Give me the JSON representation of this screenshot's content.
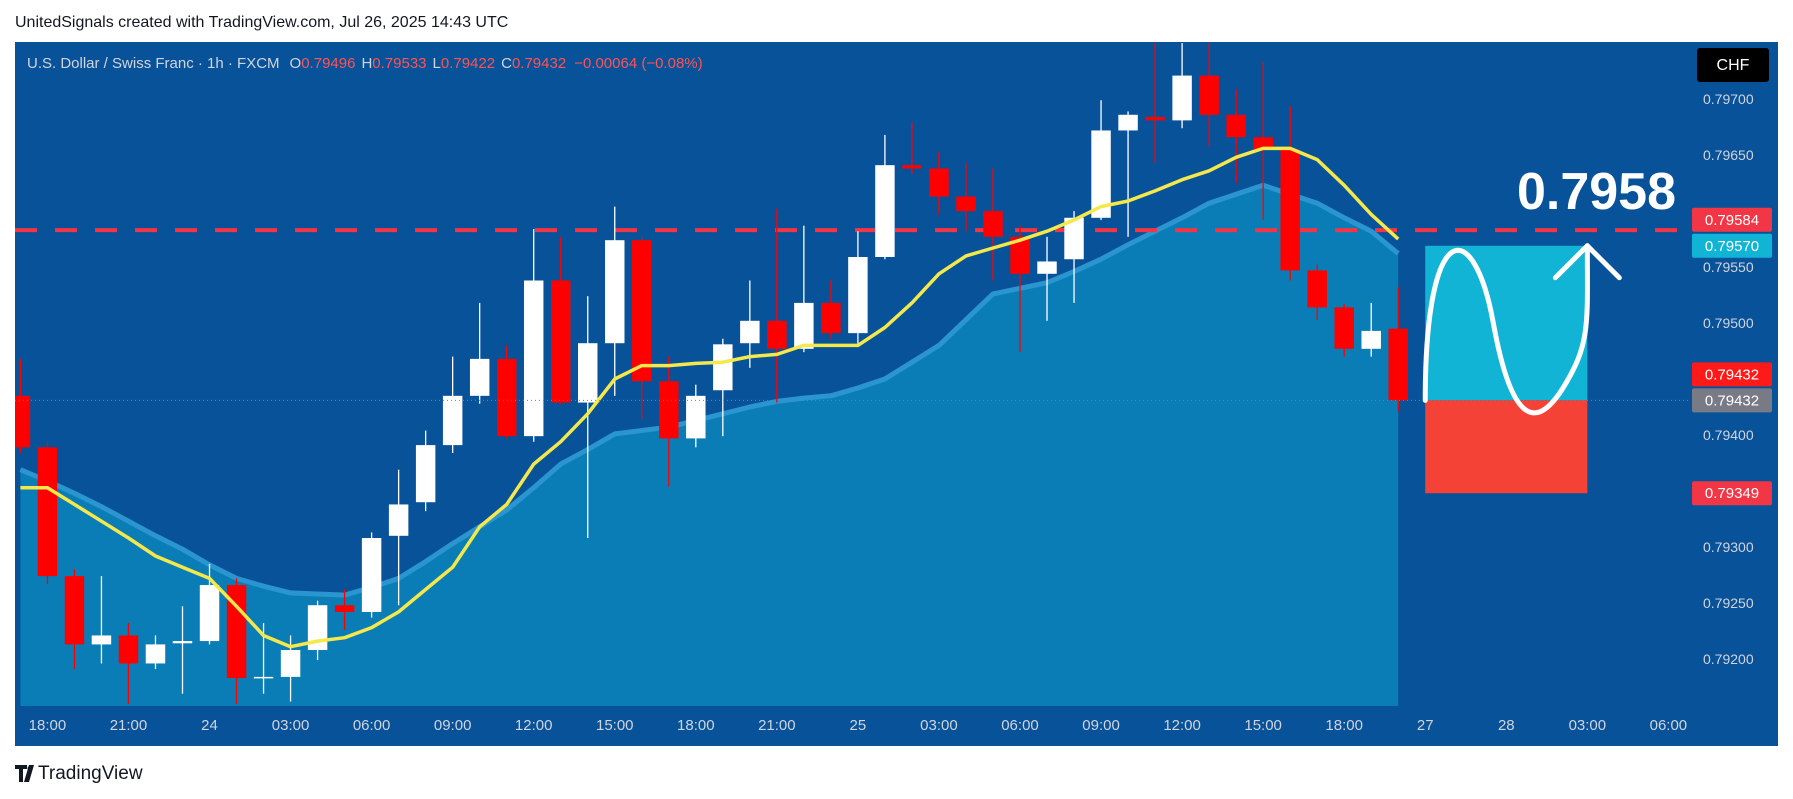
{
  "header": "UnitedSignals created with TradingView.com, Jul 26, 2025 14:43 UTC",
  "currency": "CHF",
  "brand": "TradingView",
  "chart_data": {
    "type": "candlestick",
    "title": "U.S. Dollar / Swiss Franc · 1h · FXCM",
    "ohlc_labels": [
      "O",
      "H",
      "L",
      "C"
    ],
    "change": "−0.00064 (−0.08%)",
    "up_color": "#ffffff",
    "down_color": "#ff0000",
    "open": [
      0.79436,
      0.7939,
      0.79275,
      0.79214,
      0.79222,
      0.79197,
      0.79215,
      0.79217,
      0.79267,
      0.79184,
      0.79185,
      0.79209,
      0.79249,
      0.79243,
      0.79311,
      0.79341,
      0.79392,
      0.79436,
      0.79469,
      0.794,
      0.79539,
      0.7943,
      0.79483,
      0.79575,
      0.79449,
      0.79398,
      0.79441,
      0.79483,
      0.79503,
      0.79478,
      0.79519,
      0.79492,
      0.7956,
      0.79642,
      0.79639,
      0.79614,
      0.79601,
      0.79578,
      0.79545,
      0.79558,
      0.79595,
      0.79673,
      0.79685,
      0.79682,
      0.79722,
      0.79687,
      0.79667,
      0.79656,
      0.79548,
      0.79515,
      0.79478,
      0.79496
    ],
    "high": [
      0.79469,
      0.79395,
      0.79281,
      0.79275,
      0.79233,
      0.79222,
      0.79248,
      0.79286,
      0.79273,
      0.79233,
      0.79222,
      0.79253,
      0.79263,
      0.79314,
      0.7937,
      0.79405,
      0.79471,
      0.79519,
      0.79481,
      0.79585,
      0.79578,
      0.79525,
      0.79605,
      0.79578,
      0.79471,
      0.79446,
      0.79487,
      0.79539,
      0.79603,
      0.79588,
      0.79539,
      0.79583,
      0.79669,
      0.7968,
      0.79654,
      0.79644,
      0.79639,
      0.79588,
      0.79578,
      0.79601,
      0.797,
      0.7969,
      0.79751,
      0.79751,
      0.79751,
      0.7971,
      0.79734,
      0.79695,
      0.79553,
      0.79518,
      0.79519,
      0.79533
    ],
    "low": [
      0.79385,
      0.79268,
      0.79192,
      0.79197,
      0.79161,
      0.79192,
      0.7917,
      0.79214,
      0.79161,
      0.7917,
      0.79163,
      0.792,
      0.79227,
      0.79238,
      0.79249,
      0.79333,
      0.79385,
      0.79429,
      0.79398,
      0.79395,
      0.79429,
      0.79309,
      0.79436,
      0.79415,
      0.79355,
      0.7939,
      0.794,
      0.79461,
      0.7943,
      0.79475,
      0.79487,
      0.79481,
      0.79558,
      0.79634,
      0.79598,
      0.79583,
      0.79539,
      0.79475,
      0.79503,
      0.79519,
      0.79593,
      0.79578,
      0.79644,
      0.79675,
      0.79659,
      0.79626,
      0.79593,
      0.79539,
      0.79504,
      0.79471,
      0.79471,
      0.79422
    ],
    "close": [
      0.7939,
      0.79275,
      0.79214,
      0.79222,
      0.79197,
      0.79214,
      0.79217,
      0.79267,
      0.79184,
      0.79185,
      0.79209,
      0.79249,
      0.79243,
      0.79309,
      0.79339,
      0.79392,
      0.79436,
      0.79469,
      0.794,
      0.79539,
      0.7943,
      0.79483,
      0.79575,
      0.79449,
      0.79398,
      0.79436,
      0.79482,
      0.79503,
      0.79478,
      0.79519,
      0.79492,
      0.7956,
      0.79642,
      0.79639,
      0.79614,
      0.79601,
      0.79578,
      0.79545,
      0.79556,
      0.79595,
      0.79673,
      0.79687,
      0.79682,
      0.79722,
      0.79687,
      0.79667,
      0.79656,
      0.79548,
      0.79515,
      0.79478,
      0.79494,
      0.79432
    ],
    "indicators": [
      {
        "type": "area",
        "color": "#0a7db6",
        "line_color": "#2a95cf",
        "values": [
          0.7937,
          0.7936,
          0.79349,
          0.79337,
          0.79324,
          0.79311,
          0.79299,
          0.79285,
          0.79273,
          0.79266,
          0.7926,
          0.79259,
          0.79258,
          0.79265,
          0.79273,
          0.79288,
          0.79304,
          0.79319,
          0.79334,
          0.79354,
          0.79375,
          0.79388,
          0.79402,
          0.79405,
          0.79408,
          0.79414,
          0.7942,
          0.79426,
          0.79431,
          0.79434,
          0.79436,
          0.79443,
          0.79451,
          0.79466,
          0.79481,
          0.79504,
          0.79527,
          0.79532,
          0.79537,
          0.79547,
          0.79558,
          0.79571,
          0.79583,
          0.79595,
          0.79608,
          0.79616,
          0.79624,
          0.79616,
          0.79608,
          0.79595,
          0.79583,
          0.79563
        ]
      },
      {
        "type": "line",
        "color": "#f4e84a",
        "values": [
          0.79354,
          0.79354,
          0.79339,
          0.79324,
          0.79309,
          0.79293,
          0.79283,
          0.79273,
          0.79248,
          0.79222,
          0.79212,
          0.79217,
          0.7922,
          0.79229,
          0.79243,
          0.79263,
          0.79283,
          0.79319,
          0.79339,
          0.79375,
          0.79395,
          0.7942,
          0.79451,
          0.79463,
          0.79463,
          0.79465,
          0.79466,
          0.79471,
          0.79473,
          0.79481,
          0.79481,
          0.79481,
          0.79497,
          0.79519,
          0.79545,
          0.79561,
          0.79568,
          0.79575,
          0.79583,
          0.79593,
          0.79605,
          0.7961,
          0.79619,
          0.79629,
          0.79637,
          0.79649,
          0.79657,
          0.79657,
          0.79647,
          0.79624,
          0.79598,
          0.79576
        ]
      }
    ],
    "ylim": [
      0.79159,
      0.79752
    ],
    "yticks": [
      {
        "value": 0.797,
        "label": "0.79700"
      },
      {
        "value": 0.7965,
        "label": "0.79650"
      },
      {
        "value": 0.7955,
        "label": "0.79550"
      },
      {
        "value": 0.795,
        "label": "0.79500"
      },
      {
        "value": 0.794,
        "label": "0.79400"
      },
      {
        "value": 0.793,
        "label": "0.79300"
      },
      {
        "value": 0.7925,
        "label": "0.79250"
      },
      {
        "value": 0.792,
        "label": "0.79200"
      }
    ],
    "xlim": [
      -0.2,
      61.8
    ],
    "xticks": [
      {
        "value": 1,
        "label": "18:00"
      },
      {
        "value": 4,
        "label": "21:00"
      },
      {
        "value": 7,
        "label": "24"
      },
      {
        "value": 10,
        "label": "03:00"
      },
      {
        "value": 13,
        "label": "06:00"
      },
      {
        "value": 16,
        "label": "09:00"
      },
      {
        "value": 19,
        "label": "12:00"
      },
      {
        "value": 22,
        "label": "15:00"
      },
      {
        "value": 25,
        "label": "18:00"
      },
      {
        "value": 28,
        "label": "21:00"
      },
      {
        "value": 31,
        "label": "25"
      },
      {
        "value": 34,
        "label": "03:00"
      },
      {
        "value": 37,
        "label": "06:00"
      },
      {
        "value": 40,
        "label": "09:00"
      },
      {
        "value": 43,
        "label": "12:00"
      },
      {
        "value": 46,
        "label": "15:00"
      },
      {
        "value": 49,
        "label": "18:00"
      },
      {
        "value": 52,
        "label": "27"
      },
      {
        "value": 55,
        "label": "28"
      },
      {
        "value": 58,
        "label": "03:00"
      },
      {
        "value": 61,
        "label": "06:00"
      }
    ],
    "hline": {
      "value": 0.79584,
      "color": "#f23645"
    },
    "annotation": "0.7958",
    "position": {
      "target": 0.7957,
      "entry": 0.79432,
      "stop": 0.79349,
      "start": 52,
      "end": 58,
      "target_color": "#12b4d6",
      "stop_color": "#f44336"
    },
    "price_labels": [
      {
        "value": 0.79584,
        "color": "#f23645"
      },
      {
        "value": 0.7957,
        "label": "0.79570",
        "color": "#12b4d6"
      },
      {
        "value": 0.79432,
        "color": "#ff1a1a"
      },
      {
        "value": 0.79432,
        "color": "#787b86"
      },
      {
        "value": 0.79349,
        "color": "#f23645"
      }
    ]
  }
}
